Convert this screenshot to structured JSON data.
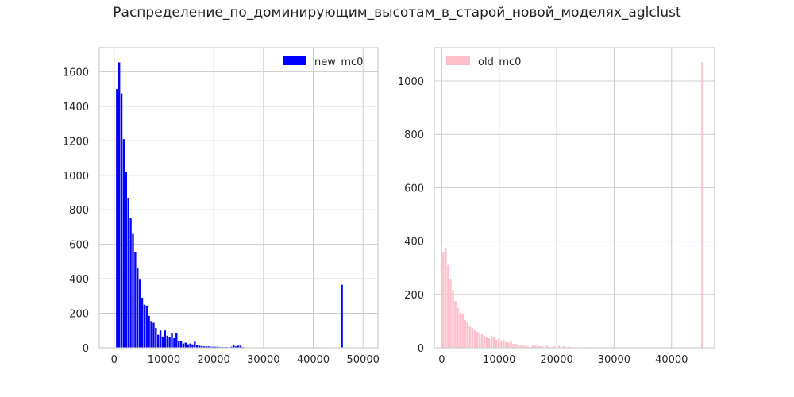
{
  "figure": {
    "title": "Распределение_по_доминирующим_высотам_в_старой_новой_моделях_aglclust"
  },
  "chart_data": [
    {
      "type": "bar",
      "subtype": "histogram",
      "grid": true,
      "legend_position": "top-right",
      "xlim": [
        -3000,
        53000
      ],
      "ylim": [
        0,
        1740
      ],
      "xticks": [
        0,
        10000,
        20000,
        30000,
        40000,
        50000
      ],
      "yticks": [
        0,
        200,
        400,
        600,
        800,
        1000,
        1200,
        1400,
        1600
      ],
      "x_tick_labels": [
        "0",
        "10000",
        "20000",
        "30000",
        "40000",
        "50000"
      ],
      "y_tick_labels": [
        "0",
        "200",
        "400",
        "600",
        "800",
        "1000",
        "1200",
        "1400",
        "1600"
      ],
      "bin_width": 460,
      "series": [
        {
          "name": "new_mc0",
          "color": "#0000ff",
          "bins": [
            {
              "x": 600,
              "y": 1500
            },
            {
              "x": 1060,
              "y": 1655
            },
            {
              "x": 1520,
              "y": 1475
            },
            {
              "x": 1980,
              "y": 1210
            },
            {
              "x": 2440,
              "y": 1020
            },
            {
              "x": 2900,
              "y": 870
            },
            {
              "x": 3360,
              "y": 750
            },
            {
              "x": 3820,
              "y": 660
            },
            {
              "x": 4280,
              "y": 555
            },
            {
              "x": 4740,
              "y": 460
            },
            {
              "x": 5200,
              "y": 395
            },
            {
              "x": 5660,
              "y": 290
            },
            {
              "x": 6120,
              "y": 250
            },
            {
              "x": 6580,
              "y": 245
            },
            {
              "x": 7040,
              "y": 185
            },
            {
              "x": 7500,
              "y": 155
            },
            {
              "x": 7960,
              "y": 145
            },
            {
              "x": 8420,
              "y": 115
            },
            {
              "x": 8880,
              "y": 75
            },
            {
              "x": 9340,
              "y": 100
            },
            {
              "x": 9800,
              "y": 65
            },
            {
              "x": 10260,
              "y": 100
            },
            {
              "x": 10720,
              "y": 70
            },
            {
              "x": 11180,
              "y": 60
            },
            {
              "x": 11640,
              "y": 85
            },
            {
              "x": 12100,
              "y": 55
            },
            {
              "x": 12560,
              "y": 85
            },
            {
              "x": 13020,
              "y": 40
            },
            {
              "x": 13480,
              "y": 40
            },
            {
              "x": 13940,
              "y": 25
            },
            {
              "x": 14400,
              "y": 30
            },
            {
              "x": 14860,
              "y": 20
            },
            {
              "x": 15320,
              "y": 25
            },
            {
              "x": 15780,
              "y": 20
            },
            {
              "x": 16240,
              "y": 35
            },
            {
              "x": 16700,
              "y": 15
            },
            {
              "x": 17160,
              "y": 12
            },
            {
              "x": 17620,
              "y": 10
            },
            {
              "x": 18080,
              "y": 8
            },
            {
              "x": 18540,
              "y": 8
            },
            {
              "x": 19000,
              "y": 8
            },
            {
              "x": 19460,
              "y": 6
            },
            {
              "x": 19920,
              "y": 6
            },
            {
              "x": 20380,
              "y": 6
            },
            {
              "x": 20840,
              "y": 6
            },
            {
              "x": 21300,
              "y": 4
            },
            {
              "x": 21760,
              "y": 4
            },
            {
              "x": 22220,
              "y": 4
            },
            {
              "x": 22680,
              "y": 4
            },
            {
              "x": 23600,
              "y": 6
            },
            {
              "x": 24060,
              "y": 18
            },
            {
              "x": 24520,
              "y": 8
            },
            {
              "x": 24980,
              "y": 12
            },
            {
              "x": 25440,
              "y": 12
            },
            {
              "x": 25900,
              "y": 4
            },
            {
              "x": 28000,
              "y": 2
            },
            {
              "x": 32000,
              "y": 2
            },
            {
              "x": 45800,
              "y": 365
            }
          ]
        }
      ]
    },
    {
      "type": "bar",
      "subtype": "histogram",
      "grid": true,
      "legend_position": "top-left",
      "xlim": [
        -1300,
        47500
      ],
      "ylim": [
        0,
        1125
      ],
      "xticks": [
        0,
        10000,
        20000,
        30000,
        40000
      ],
      "yticks": [
        0,
        200,
        400,
        600,
        800,
        1000
      ],
      "x_tick_labels": [
        "0",
        "10000",
        "20000",
        "30000",
        "40000"
      ],
      "y_tick_labels": [
        "0",
        "200",
        "400",
        "600",
        "800",
        "1000"
      ],
      "bin_width": 420,
      "series": [
        {
          "name": "old_mc0",
          "color": "#ffc0cb",
          "bins": [
            {
              "x": 300,
              "y": 360
            },
            {
              "x": 720,
              "y": 375
            },
            {
              "x": 1140,
              "y": 310
            },
            {
              "x": 1560,
              "y": 255
            },
            {
              "x": 1980,
              "y": 215
            },
            {
              "x": 2400,
              "y": 175
            },
            {
              "x": 2820,
              "y": 150
            },
            {
              "x": 3240,
              "y": 130
            },
            {
              "x": 3660,
              "y": 125
            },
            {
              "x": 4080,
              "y": 105
            },
            {
              "x": 4500,
              "y": 95
            },
            {
              "x": 4920,
              "y": 80
            },
            {
              "x": 5340,
              "y": 75
            },
            {
              "x": 5760,
              "y": 65
            },
            {
              "x": 6180,
              "y": 60
            },
            {
              "x": 6600,
              "y": 55
            },
            {
              "x": 7020,
              "y": 50
            },
            {
              "x": 7440,
              "y": 45
            },
            {
              "x": 7860,
              "y": 40
            },
            {
              "x": 8280,
              "y": 35
            },
            {
              "x": 8700,
              "y": 45
            },
            {
              "x": 9120,
              "y": 42
            },
            {
              "x": 9540,
              "y": 30
            },
            {
              "x": 9960,
              "y": 35
            },
            {
              "x": 10380,
              "y": 28
            },
            {
              "x": 10800,
              "y": 30
            },
            {
              "x": 11220,
              "y": 22
            },
            {
              "x": 11640,
              "y": 20
            },
            {
              "x": 12060,
              "y": 25
            },
            {
              "x": 12480,
              "y": 15
            },
            {
              "x": 12900,
              "y": 15
            },
            {
              "x": 13320,
              "y": 12
            },
            {
              "x": 13740,
              "y": 10
            },
            {
              "x": 14160,
              "y": 8
            },
            {
              "x": 14580,
              "y": 10
            },
            {
              "x": 15000,
              "y": 6
            },
            {
              "x": 15840,
              "y": 12
            },
            {
              "x": 16260,
              "y": 8
            },
            {
              "x": 16680,
              "y": 8
            },
            {
              "x": 17100,
              "y": 6
            },
            {
              "x": 17520,
              "y": 6
            },
            {
              "x": 18360,
              "y": 8
            },
            {
              "x": 18780,
              "y": 4
            },
            {
              "x": 19620,
              "y": 6
            },
            {
              "x": 20460,
              "y": 8
            },
            {
              "x": 21300,
              "y": 6
            },
            {
              "x": 22140,
              "y": 4
            },
            {
              "x": 25500,
              "y": 3
            },
            {
              "x": 30000,
              "y": 2
            },
            {
              "x": 35000,
              "y": 2
            },
            {
              "x": 45400,
              "y": 1070
            }
          ]
        }
      ]
    }
  ]
}
